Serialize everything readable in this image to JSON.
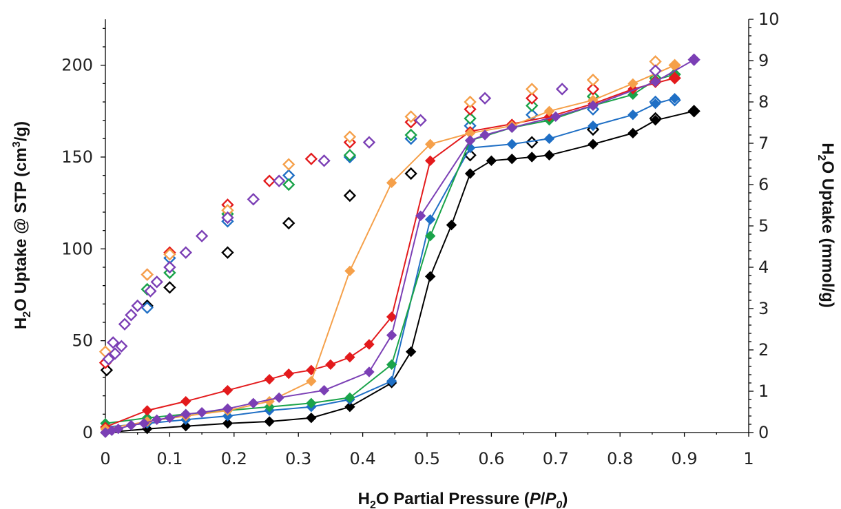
{
  "chart_data": {
    "type": "scatter",
    "xlabel": {
      "pre": "H",
      "sub": "2",
      "mid": "O Partial Pressure (",
      "v1": "P",
      "slash": "/",
      "v2": "P",
      "sub2": "0",
      "post": ")"
    },
    "ylabel": {
      "pre": "H",
      "sub": "2",
      "mid": "O Uptake @ STP (cm",
      "sup": "3",
      "post": "/g)"
    },
    "y2label": {
      "pre": "H",
      "sub": "2",
      "post": "O Uptake (mmol/g)"
    },
    "xlim": [
      0,
      1
    ],
    "ylim": [
      0,
      225
    ],
    "y2lim": [
      0,
      10
    ],
    "x_ticks": [
      "0",
      "0.1",
      "0.2",
      "0.3",
      "0.4",
      "0.5",
      "0.6",
      "0.7",
      "0.8",
      "0.9",
      "1"
    ],
    "y_ticks": [
      "0",
      "50",
      "100",
      "150",
      "200"
    ],
    "y2_ticks": [
      "0",
      "1",
      "2",
      "3",
      "4",
      "5",
      "6",
      "7",
      "8",
      "9",
      "10"
    ],
    "grid": false,
    "marker": "diamond",
    "series": [
      {
        "color": "#000000",
        "adsorption": [
          [
            0.0,
            0
          ],
          [
            0.065,
            2
          ],
          [
            0.125,
            3.5
          ],
          [
            0.19,
            5
          ],
          [
            0.255,
            6
          ],
          [
            0.32,
            8
          ],
          [
            0.38,
            14
          ],
          [
            0.445,
            27
          ],
          [
            0.475,
            44
          ],
          [
            0.505,
            85
          ],
          [
            0.538,
            113
          ],
          [
            0.567,
            141
          ],
          [
            0.6,
            148
          ],
          [
            0.632,
            149
          ],
          [
            0.663,
            150
          ],
          [
            0.69,
            151
          ],
          [
            0.758,
            157
          ],
          [
            0.82,
            163
          ],
          [
            0.855,
            170
          ],
          [
            0.915,
            175
          ]
        ],
        "desorption": [
          [
            0.915,
            175
          ],
          [
            0.855,
            171
          ],
          [
            0.758,
            165
          ],
          [
            0.663,
            158
          ],
          [
            0.567,
            151
          ],
          [
            0.475,
            141
          ],
          [
            0.38,
            129
          ],
          [
            0.285,
            114
          ],
          [
            0.19,
            98
          ],
          [
            0.1,
            79
          ],
          [
            0.065,
            69
          ],
          [
            0.002,
            34
          ]
        ]
      },
      {
        "color": "#1f6fc5",
        "adsorption": [
          [
            0.0,
            3
          ],
          [
            0.065,
            5
          ],
          [
            0.125,
            7
          ],
          [
            0.19,
            9
          ],
          [
            0.255,
            12
          ],
          [
            0.32,
            14
          ],
          [
            0.38,
            18
          ],
          [
            0.445,
            28
          ],
          [
            0.505,
            116
          ],
          [
            0.567,
            155
          ],
          [
            0.632,
            157
          ],
          [
            0.69,
            160
          ],
          [
            0.758,
            167
          ],
          [
            0.82,
            173
          ],
          [
            0.855,
            179
          ],
          [
            0.885,
            182
          ]
        ],
        "desorption": [
          [
            0.885,
            181
          ],
          [
            0.855,
            180
          ],
          [
            0.758,
            176
          ],
          [
            0.663,
            173
          ],
          [
            0.567,
            167
          ],
          [
            0.475,
            160
          ],
          [
            0.38,
            150
          ],
          [
            0.285,
            140
          ],
          [
            0.19,
            115
          ],
          [
            0.1,
            95
          ],
          [
            0.065,
            68
          ]
        ]
      },
      {
        "color": "#1aa34a",
        "adsorption": [
          [
            0.0,
            5
          ],
          [
            0.065,
            8
          ],
          [
            0.125,
            10
          ],
          [
            0.19,
            12
          ],
          [
            0.255,
            14
          ],
          [
            0.32,
            16
          ],
          [
            0.38,
            19
          ],
          [
            0.445,
            37
          ],
          [
            0.505,
            107
          ],
          [
            0.567,
            159
          ],
          [
            0.632,
            166
          ],
          [
            0.69,
            170
          ],
          [
            0.758,
            178
          ],
          [
            0.82,
            184
          ],
          [
            0.855,
            192
          ],
          [
            0.885,
            195
          ]
        ],
        "desorption": [
          [
            0.885,
            195
          ],
          [
            0.855,
            193
          ],
          [
            0.758,
            183
          ],
          [
            0.663,
            178
          ],
          [
            0.567,
            171
          ],
          [
            0.475,
            162
          ],
          [
            0.38,
            151
          ],
          [
            0.285,
            135
          ],
          [
            0.19,
            119
          ],
          [
            0.1,
            87
          ],
          [
            0.065,
            78
          ]
        ]
      },
      {
        "color": "#e31a1c",
        "adsorption": [
          [
            0.0,
            3
          ],
          [
            0.065,
            12
          ],
          [
            0.125,
            17
          ],
          [
            0.19,
            23
          ],
          [
            0.255,
            29
          ],
          [
            0.285,
            32
          ],
          [
            0.32,
            34
          ],
          [
            0.35,
            37
          ],
          [
            0.38,
            41
          ],
          [
            0.41,
            48
          ],
          [
            0.445,
            63
          ],
          [
            0.505,
            148
          ],
          [
            0.567,
            164
          ],
          [
            0.632,
            168
          ],
          [
            0.69,
            172
          ],
          [
            0.758,
            179
          ],
          [
            0.82,
            187
          ],
          [
            0.885,
            193
          ]
        ],
        "desorption": [
          [
            0.885,
            193
          ],
          [
            0.855,
            191
          ],
          [
            0.758,
            187
          ],
          [
            0.663,
            182
          ],
          [
            0.567,
            176
          ],
          [
            0.475,
            169
          ],
          [
            0.38,
            158
          ],
          [
            0.32,
            149
          ],
          [
            0.255,
            137
          ],
          [
            0.19,
            124
          ],
          [
            0.1,
            98
          ],
          [
            0.065,
            86
          ],
          [
            0.0,
            38
          ]
        ]
      },
      {
        "color": "#f5a04a",
        "adsorption": [
          [
            0.0,
            2
          ],
          [
            0.065,
            6
          ],
          [
            0.125,
            9
          ],
          [
            0.19,
            12
          ],
          [
            0.255,
            17
          ],
          [
            0.32,
            28
          ],
          [
            0.38,
            88
          ],
          [
            0.445,
            136
          ],
          [
            0.505,
            157
          ],
          [
            0.567,
            163
          ],
          [
            0.632,
            167
          ],
          [
            0.69,
            175
          ],
          [
            0.758,
            181
          ],
          [
            0.82,
            190
          ],
          [
            0.885,
            200
          ]
        ],
        "desorption": [
          [
            0.885,
            200
          ],
          [
            0.855,
            202
          ],
          [
            0.758,
            192
          ],
          [
            0.663,
            187
          ],
          [
            0.567,
            180
          ],
          [
            0.475,
            172
          ],
          [
            0.38,
            161
          ],
          [
            0.285,
            146
          ],
          [
            0.19,
            121
          ],
          [
            0.1,
            97
          ],
          [
            0.065,
            86
          ],
          [
            0.0,
            44
          ]
        ]
      },
      {
        "color": "#7b3fb5",
        "adsorption": [
          [
            0.0,
            0
          ],
          [
            0.01,
            1
          ],
          [
            0.02,
            2
          ],
          [
            0.04,
            4
          ],
          [
            0.06,
            5
          ],
          [
            0.08,
            7
          ],
          [
            0.1,
            8
          ],
          [
            0.125,
            10
          ],
          [
            0.15,
            11
          ],
          [
            0.19,
            13
          ],
          [
            0.23,
            16
          ],
          [
            0.27,
            19
          ],
          [
            0.34,
            23
          ],
          [
            0.41,
            33
          ],
          [
            0.445,
            53
          ],
          [
            0.49,
            118
          ],
          [
            0.567,
            159
          ],
          [
            0.59,
            162
          ],
          [
            0.632,
            166
          ],
          [
            0.7,
            172
          ],
          [
            0.758,
            178
          ],
          [
            0.855,
            191
          ],
          [
            0.915,
            203
          ]
        ],
        "desorption": [
          [
            0.915,
            203
          ],
          [
            0.855,
            197
          ],
          [
            0.71,
            187
          ],
          [
            0.59,
            182
          ],
          [
            0.49,
            170
          ],
          [
            0.41,
            158
          ],
          [
            0.34,
            148
          ],
          [
            0.27,
            137
          ],
          [
            0.23,
            127
          ],
          [
            0.19,
            117
          ],
          [
            0.15,
            107
          ],
          [
            0.125,
            98
          ],
          [
            0.1,
            90
          ],
          [
            0.08,
            82
          ],
          [
            0.07,
            77
          ],
          [
            0.05,
            69
          ],
          [
            0.04,
            64
          ],
          [
            0.03,
            59
          ],
          [
            0.025,
            47
          ],
          [
            0.015,
            43
          ],
          [
            0.012,
            49
          ],
          [
            0.005,
            40
          ]
        ]
      }
    ]
  }
}
